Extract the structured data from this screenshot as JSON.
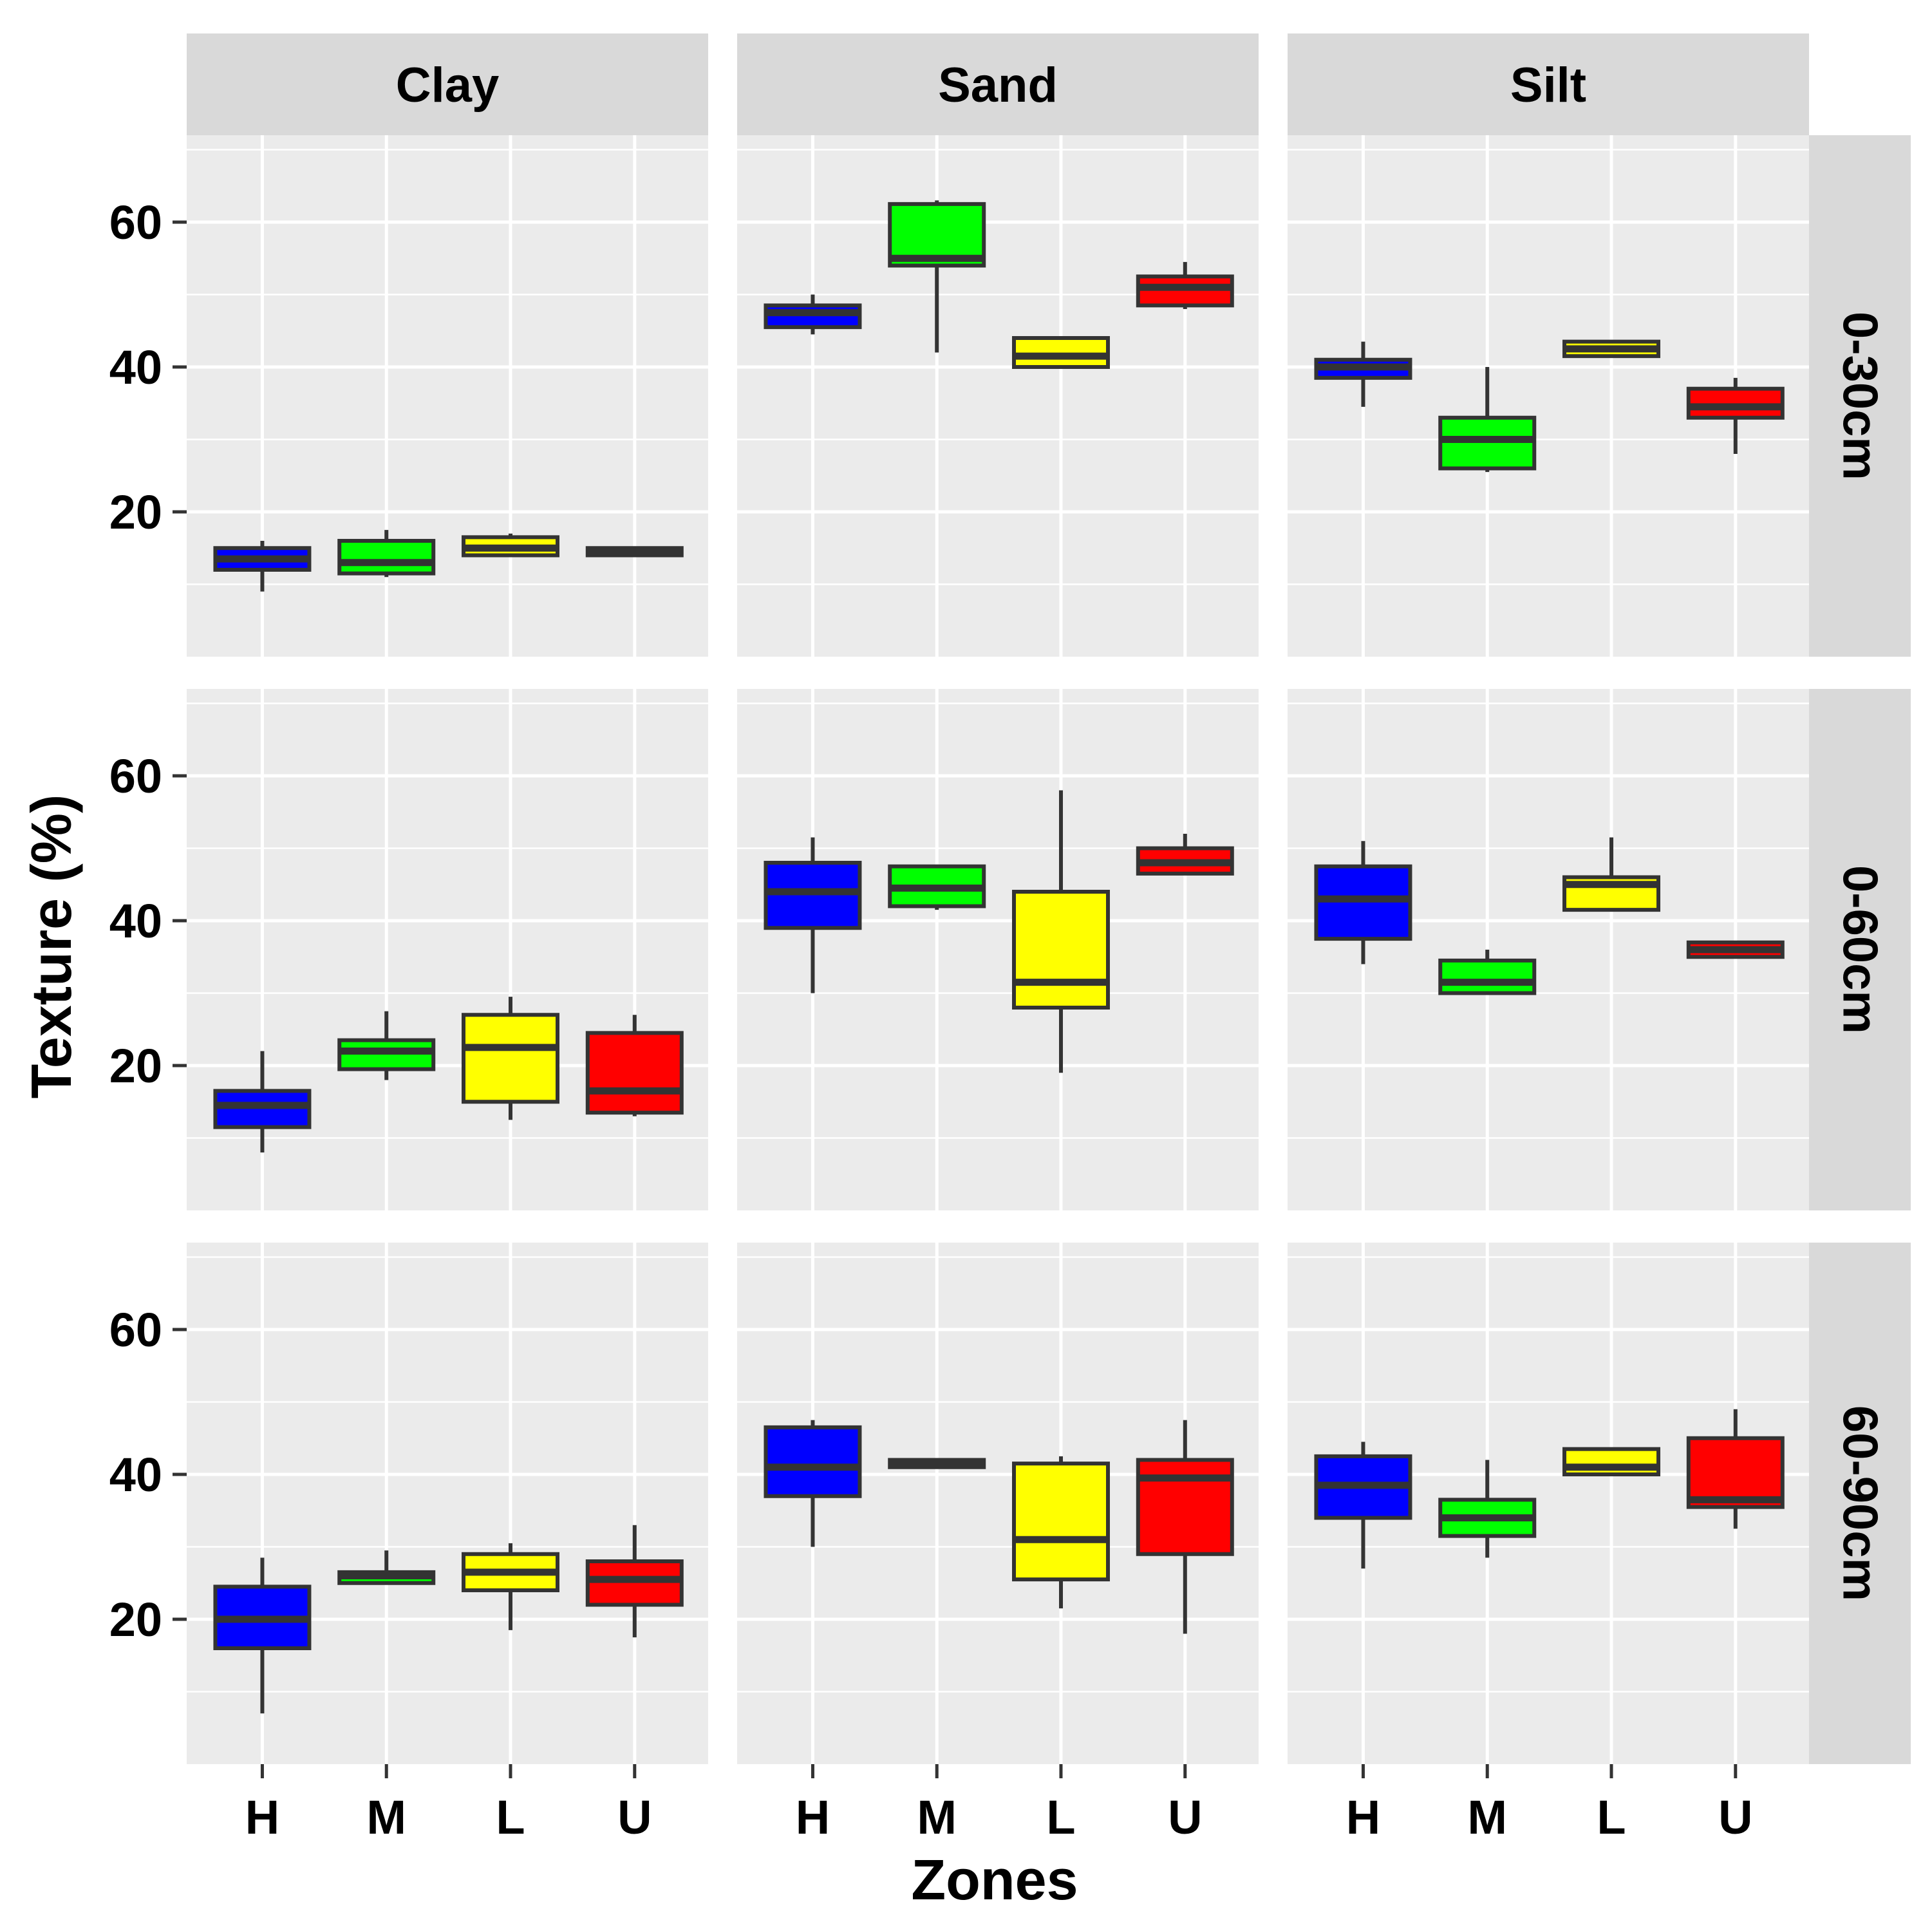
{
  "chart_data": {
    "type": "boxplot",
    "title": "",
    "xlabel": "Zones",
    "ylabel": "Texture (%)",
    "ylim": [
      0,
      72
    ],
    "yticks": [
      20,
      40,
      60
    ],
    "categories": [
      "H",
      "M",
      "L",
      "U"
    ],
    "columns": [
      "Clay",
      "Sand",
      "Silt"
    ],
    "rows": [
      "0-30cm",
      "0-60cm",
      "60-90cm"
    ],
    "zone_colors": {
      "H": "#0000ff",
      "M": "#00ff00",
      "L": "#ffff00",
      "U": "#ff0000"
    },
    "panel_background": "#ebebeb",
    "strip_background": "#d9d9d9",
    "box_outline_color": "#333333",
    "panels": [
      {
        "column": "Clay",
        "row": "0-30cm",
        "boxes": [
          {
            "zone": "H",
            "min": 9,
            "q1": 12,
            "median": 13.5,
            "q3": 15,
            "max": 16
          },
          {
            "zone": "M",
            "min": 11,
            "q1": 11.5,
            "median": 13,
            "q3": 16,
            "max": 17.5
          },
          {
            "zone": "L",
            "min": 14,
            "q1": 14,
            "median": 15,
            "q3": 16.5,
            "max": 17
          },
          {
            "zone": "U",
            "min": 14,
            "q1": 14,
            "median": 14.5,
            "q3": 15,
            "max": 15
          }
        ]
      },
      {
        "column": "Sand",
        "row": "0-30cm",
        "boxes": [
          {
            "zone": "H",
            "min": 44.5,
            "q1": 45.5,
            "median": 47.5,
            "q3": 48.5,
            "max": 50
          },
          {
            "zone": "M",
            "min": 42,
            "q1": 54,
            "median": 55,
            "q3": 62.5,
            "max": 63
          },
          {
            "zone": "L",
            "min": 40,
            "q1": 40,
            "median": 41.5,
            "q3": 44,
            "max": 44
          },
          {
            "zone": "U",
            "min": 48,
            "q1": 48.5,
            "median": 51,
            "q3": 52.5,
            "max": 54.5
          }
        ]
      },
      {
        "column": "Silt",
        "row": "0-30cm",
        "boxes": [
          {
            "zone": "H",
            "min": 34.5,
            "q1": 38.5,
            "median": 40,
            "q3": 41,
            "max": 43.5
          },
          {
            "zone": "M",
            "min": 25.5,
            "q1": 26,
            "median": 30,
            "q3": 33,
            "max": 40
          },
          {
            "zone": "L",
            "min": 41.5,
            "q1": 41.5,
            "median": 42.5,
            "q3": 43.5,
            "max": 43.5
          },
          {
            "zone": "U",
            "min": 28,
            "q1": 33,
            "median": 34.5,
            "q3": 37,
            "max": 38.5
          }
        ]
      },
      {
        "column": "Clay",
        "row": "0-60cm",
        "boxes": [
          {
            "zone": "H",
            "min": 8,
            "q1": 11.5,
            "median": 14.5,
            "q3": 16.5,
            "max": 22
          },
          {
            "zone": "M",
            "min": 18,
            "q1": 19.5,
            "median": 22,
            "q3": 23.5,
            "max": 27.5
          },
          {
            "zone": "L",
            "min": 12.5,
            "q1": 15,
            "median": 22.5,
            "q3": 27,
            "max": 29.5
          },
          {
            "zone": "U",
            "min": 13,
            "q1": 13.5,
            "median": 16.5,
            "q3": 24.5,
            "max": 27
          }
        ]
      },
      {
        "column": "Sand",
        "row": "0-60cm",
        "boxes": [
          {
            "zone": "H",
            "min": 30,
            "q1": 39,
            "median": 44,
            "q3": 48,
            "max": 51.5
          },
          {
            "zone": "M",
            "min": 41.5,
            "q1": 42,
            "median": 44.5,
            "q3": 47.5,
            "max": 47.5
          },
          {
            "zone": "L",
            "min": 19,
            "q1": 28,
            "median": 31.5,
            "q3": 44,
            "max": 58
          },
          {
            "zone": "U",
            "min": 46.5,
            "q1": 46.5,
            "median": 48,
            "q3": 50,
            "max": 52
          }
        ]
      },
      {
        "column": "Silt",
        "row": "0-60cm",
        "boxes": [
          {
            "zone": "H",
            "min": 34,
            "q1": 37.5,
            "median": 43,
            "q3": 47.5,
            "max": 51
          },
          {
            "zone": "M",
            "min": 30,
            "q1": 30,
            "median": 31.5,
            "q3": 34.5,
            "max": 36
          },
          {
            "zone": "L",
            "min": 41.5,
            "q1": 41.5,
            "median": 45,
            "q3": 46,
            "max": 51.5
          },
          {
            "zone": "U",
            "min": 35,
            "q1": 35,
            "median": 36,
            "q3": 37,
            "max": 37
          }
        ]
      },
      {
        "column": "Clay",
        "row": "60-90cm",
        "boxes": [
          {
            "zone": "H",
            "min": 7,
            "q1": 16,
            "median": 20,
            "q3": 24.5,
            "max": 28.5
          },
          {
            "zone": "M",
            "min": 25,
            "q1": 25,
            "median": 26,
            "q3": 26.5,
            "max": 29.5
          },
          {
            "zone": "L",
            "min": 18.5,
            "q1": 24,
            "median": 26.5,
            "q3": 29,
            "max": 30.5
          },
          {
            "zone": "U",
            "min": 17.5,
            "q1": 22,
            "median": 25.5,
            "q3": 28,
            "max": 33
          }
        ]
      },
      {
        "column": "Sand",
        "row": "60-90cm",
        "boxes": [
          {
            "zone": "H",
            "min": 30,
            "q1": 37,
            "median": 41,
            "q3": 46.5,
            "max": 47.5
          },
          {
            "zone": "M",
            "min": 41,
            "q1": 41,
            "median": 41.5,
            "q3": 42,
            "max": 42
          },
          {
            "zone": "L",
            "min": 21.5,
            "q1": 25.5,
            "median": 31,
            "q3": 41.5,
            "max": 42.5
          },
          {
            "zone": "U",
            "min": 18,
            "q1": 29,
            "median": 39.5,
            "q3": 42,
            "max": 47.5
          }
        ]
      },
      {
        "column": "Silt",
        "row": "60-90cm",
        "boxes": [
          {
            "zone": "H",
            "min": 27,
            "q1": 34,
            "median": 38.5,
            "q3": 42.5,
            "max": 44.5
          },
          {
            "zone": "M",
            "min": 28.5,
            "q1": 31.5,
            "median": 34,
            "q3": 36.5,
            "max": 42
          },
          {
            "zone": "L",
            "min": 40,
            "q1": 40,
            "median": 41,
            "q3": 43.5,
            "max": 43.5
          },
          {
            "zone": "U",
            "min": 32.5,
            "q1": 35.5,
            "median": 36.5,
            "q3": 45,
            "max": 49
          }
        ]
      }
    ]
  }
}
